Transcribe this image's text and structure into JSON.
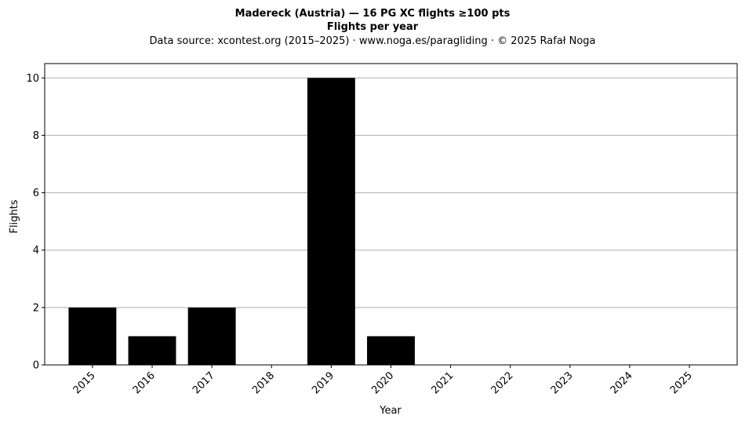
{
  "chart_data": {
    "type": "bar",
    "title_line1": "Madereck (Austria)  —  16 PG XC flights ≥100 pts",
    "title_line2": "Flights per year",
    "subtitle": "Data source: xcontest.org (2015–2025)  ·  www.noga.es/paragliding  ·  © 2025 Rafał Noga",
    "xlabel": "Year",
    "ylabel": "Flights",
    "categories": [
      "2015",
      "2016",
      "2017",
      "2018",
      "2019",
      "2020",
      "2021",
      "2022",
      "2023",
      "2024",
      "2025"
    ],
    "values": [
      2,
      1,
      2,
      0,
      10,
      1,
      0,
      0,
      0,
      0,
      0
    ],
    "ylim": [
      0,
      10.5
    ],
    "yticks": [
      0,
      2,
      4,
      6,
      8,
      10
    ],
    "grid": "horizontal",
    "bar_color": "#000000",
    "grid_color": "#b0b0b0"
  }
}
